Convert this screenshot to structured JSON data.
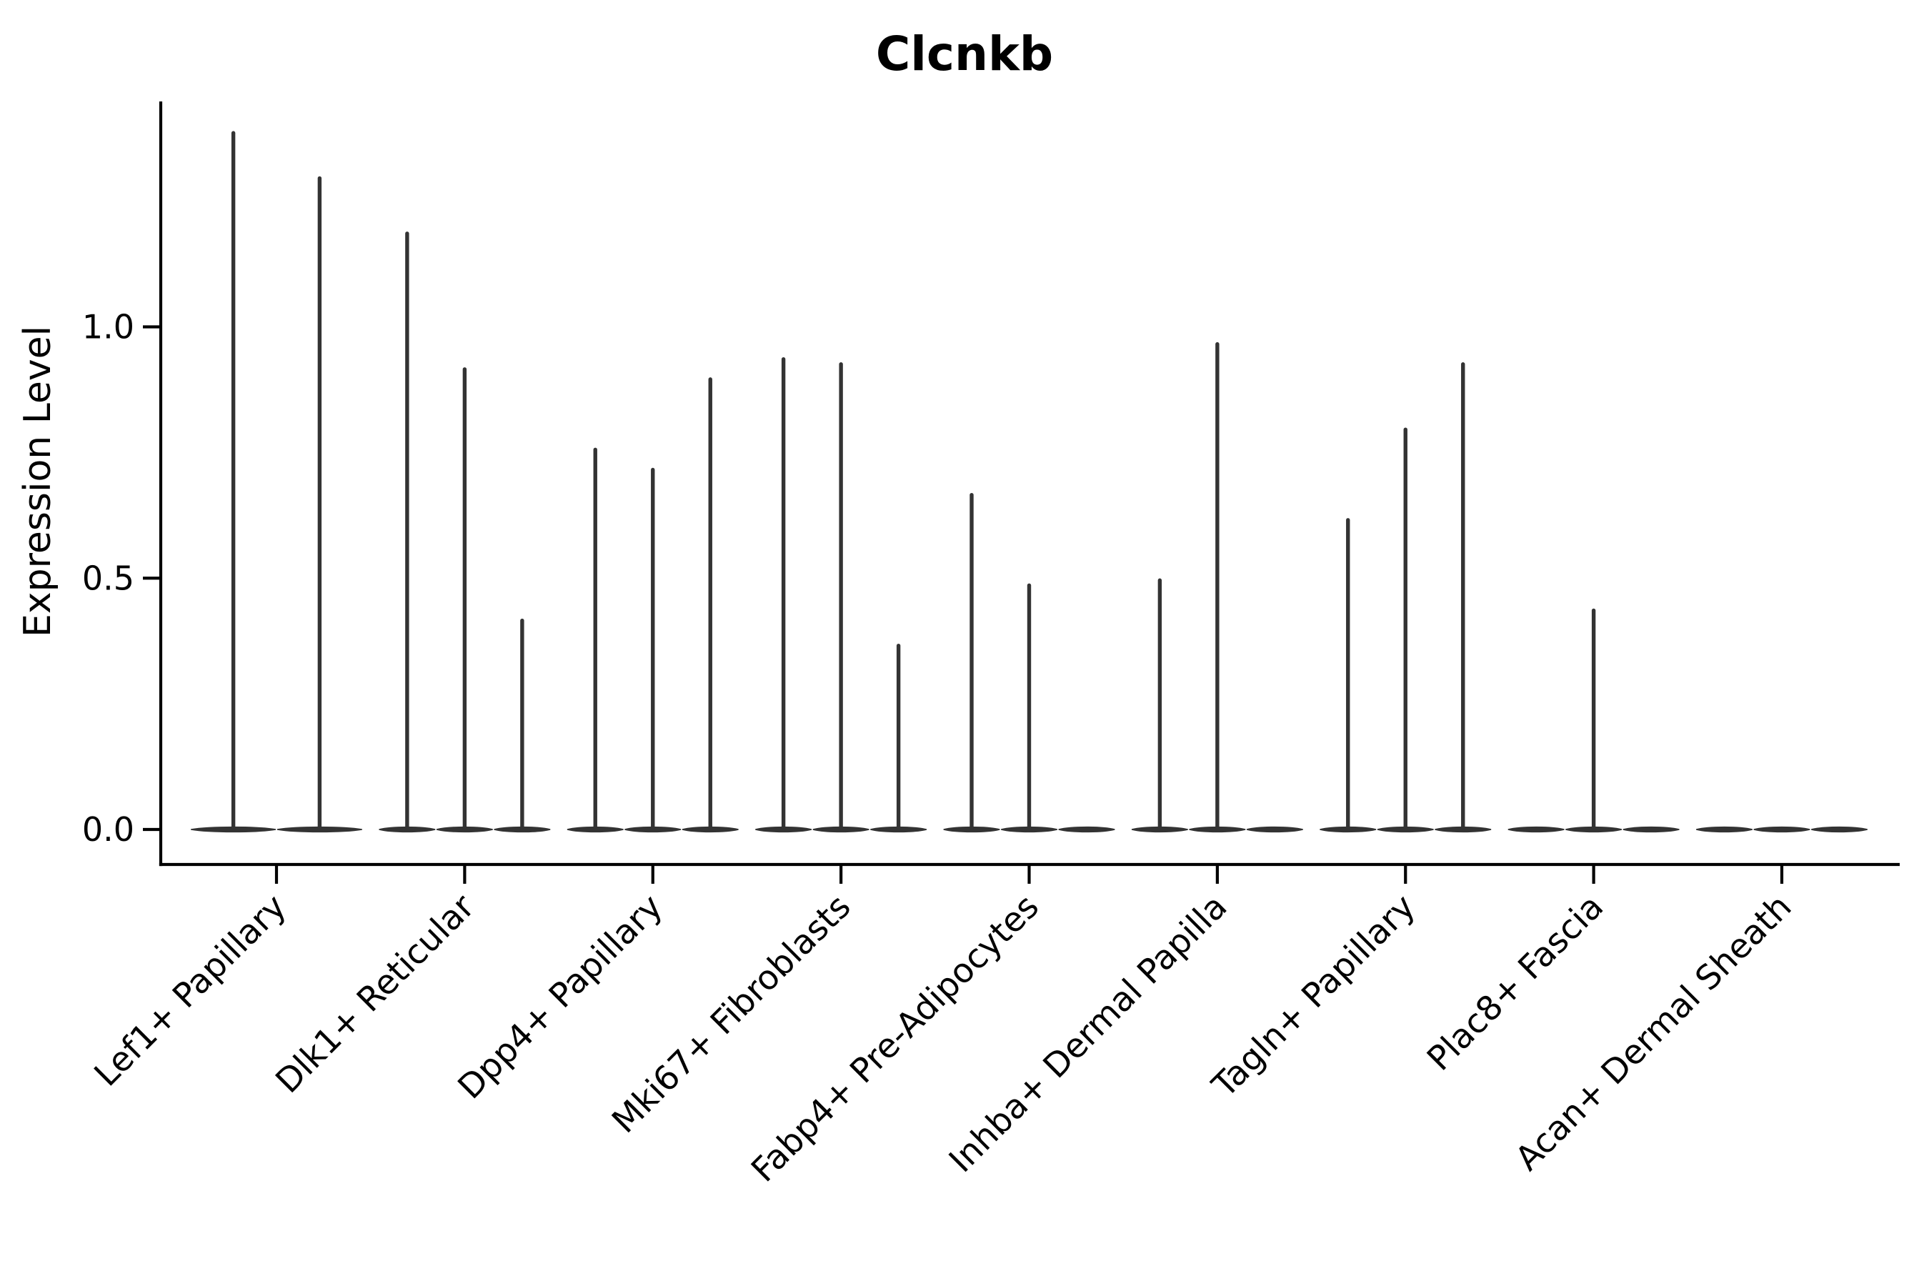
{
  "figure": {
    "title": "Clcnkb",
    "ylabel": "Expression Level"
  },
  "chart_data": {
    "type": "violin",
    "title": "Clcnkb",
    "xlabel": "",
    "ylabel": "Expression Level",
    "ylim": [
      -0.07,
      1.45
    ],
    "yticks": [
      {
        "value": 0.0,
        "label": "0.0"
      },
      {
        "value": 0.5,
        "label": "0.5"
      },
      {
        "value": 1.0,
        "label": "1.0"
      }
    ],
    "grid": false,
    "legend": "none",
    "violin_color": "#333333",
    "axis_color": "#000000",
    "categories": [
      "Lef1+ Papillary",
      "Dlk1+ Reticular",
      "Dpp4+ Papillary",
      "Mki67+ Fibroblasts",
      "Fabp4+ Pre-Adipocytes",
      "Inhba+ Dermal Papilla",
      "Tagln+ Papillary",
      "Plac8+ Fascia",
      "Acan+ Dermal Sheath"
    ],
    "groups": [
      {
        "category": "Lef1+ Papillary",
        "violin_max_values": [
          1.39,
          1.3
        ]
      },
      {
        "category": "Dlk1+ Reticular",
        "violin_max_values": [
          1.19,
          0.92,
          0.42
        ]
      },
      {
        "category": "Dpp4+ Papillary",
        "violin_max_values": [
          0.76,
          0.72,
          0.9
        ]
      },
      {
        "category": "Mki67+ Fibroblasts",
        "violin_max_values": [
          0.94,
          0.93,
          0.37
        ]
      },
      {
        "category": "Fabp4+ Pre-Adipocytes",
        "violin_max_values": [
          0.67,
          0.49,
          0.0
        ]
      },
      {
        "category": "Inhba+ Dermal Papilla",
        "violin_max_values": [
          0.5,
          0.97,
          0.0
        ]
      },
      {
        "category": "Tagln+ Papillary",
        "violin_max_values": [
          0.62,
          0.8,
          0.93
        ]
      },
      {
        "category": "Plac8+ Fascia",
        "violin_max_values": [
          0.0,
          0.44,
          0.0
        ]
      },
      {
        "category": "Acan+ Dermal Sheath",
        "violin_max_values": [
          0.0,
          0.0,
          0.0
        ]
      }
    ],
    "description": "Violin plot of Clcnkb expression per fibroblast sub-cluster; each violin body is collapsed flat at 0 with a thin vertical spike rising to its maximum expression value."
  }
}
